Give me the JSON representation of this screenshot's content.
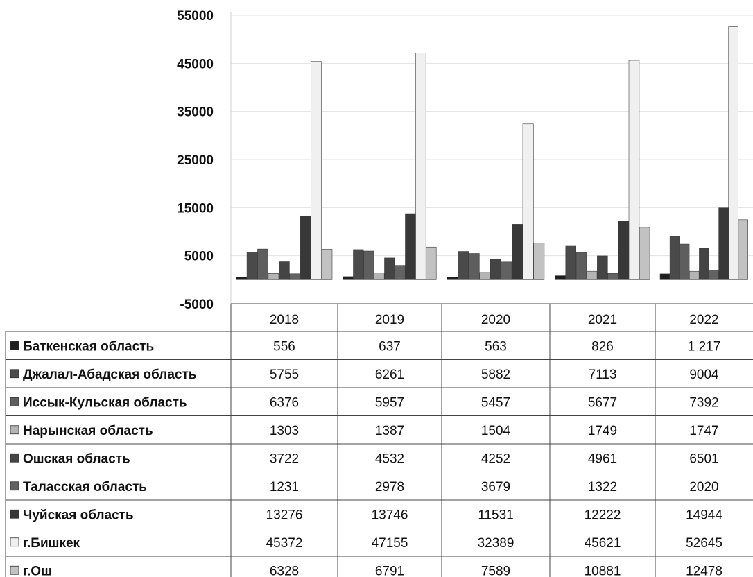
{
  "chart_data": {
    "type": "bar",
    "title": "",
    "xlabel": "",
    "ylabel": "",
    "categories": [
      "2018",
      "2019",
      "2020",
      "2021",
      "2022"
    ],
    "ylim": [
      -5000,
      55000
    ],
    "yticks": [
      "55000",
      "45000",
      "35000",
      "25000",
      "15000",
      "5000",
      "-5000"
    ],
    "grid": true,
    "legend": "data-table",
    "series": [
      {
        "name": "Баткенская область",
        "values": [
          556,
          637,
          563,
          826,
          1217
        ],
        "labels": [
          "556",
          "637",
          "563",
          "826",
          "1 217"
        ],
        "color": "#1e1e1e"
      },
      {
        "name": "Джалал-Абадская область",
        "values": [
          5755,
          6261,
          5882,
          7113,
          9004
        ],
        "labels": [
          "5755",
          "6261",
          "5882",
          "7113",
          "9004"
        ],
        "color": "#4a4a4a"
      },
      {
        "name": "Иссык-Кульская область",
        "values": [
          6376,
          5957,
          5457,
          5677,
          7392
        ],
        "labels": [
          "6376",
          "5957",
          "5457",
          "5677",
          "7392"
        ],
        "color": "#5e5e5e"
      },
      {
        "name": "Нарынская область",
        "values": [
          1303,
          1387,
          1504,
          1749,
          1747
        ],
        "labels": [
          "1303",
          "1387",
          "1504",
          "1749",
          "1747"
        ],
        "color": "#b4b4b4"
      },
      {
        "name": "Ошская область",
        "values": [
          3722,
          4532,
          4252,
          4961,
          6501
        ],
        "labels": [
          "3722",
          "4532",
          "4252",
          "4961",
          "6501"
        ],
        "color": "#444444"
      },
      {
        "name": "Таласская область",
        "values": [
          1231,
          2978,
          3679,
          1322,
          2020
        ],
        "labels": [
          "1231",
          "2978",
          "3679",
          "1322",
          "2020"
        ],
        "color": "#626262"
      },
      {
        "name": "Чуйская область",
        "values": [
          13276,
          13746,
          11531,
          12222,
          14944
        ],
        "labels": [
          "13276",
          "13746",
          "11531",
          "12222",
          "14944"
        ],
        "color": "#383838"
      },
      {
        "name": "г.Бишкек",
        "values": [
          45372,
          47155,
          32389,
          45621,
          52645
        ],
        "labels": [
          "45372",
          "47155",
          "32389",
          "45621",
          "52645"
        ],
        "color": "#f0f0f0"
      },
      {
        "name": "г.Ош",
        "values": [
          6328,
          6791,
          7589,
          10881,
          12478
        ],
        "labels": [
          "6328",
          "6791",
          "7589",
          "10881",
          "12478"
        ],
        "color": "#c2c2c2"
      }
    ]
  }
}
